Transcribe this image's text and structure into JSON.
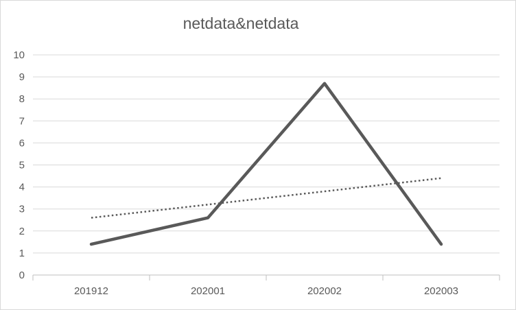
{
  "chart_data": {
    "type": "line",
    "title": "netdata&netdata",
    "categories": [
      "201912",
      "202001",
      "202002",
      "202003"
    ],
    "series": [
      {
        "values": [
          1.4,
          2.6,
          8.7,
          1.4
        ],
        "color": "#595959",
        "style": "solid"
      },
      {
        "values": [
          2.6,
          3.2,
          3.8,
          4.4
        ],
        "color": "#595959",
        "style": "dotted",
        "kind": "trendline"
      }
    ],
    "ylim": [
      0,
      10
    ],
    "yticks": [
      "0",
      "1",
      "2",
      "3",
      "4",
      "5",
      "6",
      "7",
      "8",
      "9",
      "10"
    ],
    "grid": true,
    "legend": "none"
  }
}
